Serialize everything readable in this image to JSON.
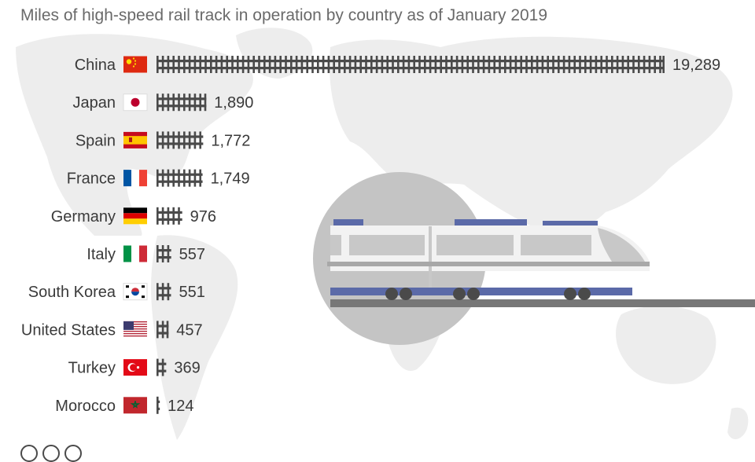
{
  "subtitle": "Miles of high-speed rail track in operation by country as of January 2019",
  "chart_data": {
    "type": "bar",
    "orientation": "horizontal",
    "title": "",
    "subtitle": "Miles of high-speed rail track in operation by country as of January 2019",
    "categories": [
      "China",
      "Japan",
      "Spain",
      "France",
      "Germany",
      "Italy",
      "South Korea",
      "United States",
      "Turkey",
      "Morocco"
    ],
    "values": [
      19289,
      1890,
      1772,
      1749,
      976,
      557,
      551,
      457,
      369,
      124
    ],
    "value_labels": [
      "19,289",
      "1,890",
      "1,772",
      "1,749",
      "976",
      "557",
      "551",
      "457",
      "369",
      "124"
    ],
    "flags": [
      "flag-china-icon",
      "flag-japan-icon",
      "flag-spain-icon",
      "flag-france-icon",
      "flag-germany-icon",
      "flag-italy-icon",
      "flag-south-korea-icon",
      "flag-united-states-icon",
      "flag-turkey-icon",
      "flag-morocco-icon"
    ],
    "bar_style": "railway-track",
    "grid": false,
    "legend": "none",
    "xlim": [
      0,
      19289
    ]
  },
  "illustration": {
    "name": "high-speed-train-icon",
    "colors": {
      "body": "#f0f0f0",
      "stripe": "#5b6aa8",
      "window": "#c8c8c8",
      "circle": "#c4c4c4"
    }
  },
  "colors": {
    "track": "#4a4a4a",
    "label": "#3a3a3a",
    "map": "#ededed"
  }
}
